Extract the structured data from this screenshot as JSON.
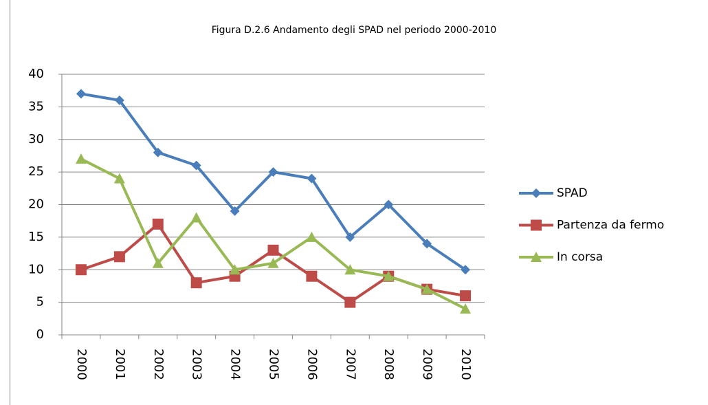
{
  "chart_data": {
    "type": "line",
    "title": "Figura D.2.6 Andamento degli SPAD nel periodo 2000-2010",
    "categories": [
      "2000",
      "2001",
      "2002",
      "2003",
      "2004",
      "2005",
      "2006",
      "2007",
      "2008",
      "2009",
      "2010"
    ],
    "series": [
      {
        "name": "SPAD",
        "color": "#4a7ebb",
        "marker": "diamond",
        "values": [
          37,
          36,
          28,
          26,
          19,
          25,
          24,
          15,
          20,
          14,
          10
        ]
      },
      {
        "name": "Partenza da fermo",
        "color": "#be4b48",
        "marker": "square",
        "values": [
          10,
          12,
          17,
          8,
          9,
          13,
          9,
          5,
          9,
          7,
          6
        ]
      },
      {
        "name": "In corsa",
        "color": "#98b954",
        "marker": "triangle",
        "values": [
          27,
          24,
          11,
          18,
          10,
          11,
          15,
          10,
          9,
          7,
          4
        ]
      }
    ],
    "ylim": [
      0,
      40
    ],
    "yticks": [
      0,
      5,
      10,
      15,
      20,
      25,
      30,
      35,
      40
    ],
    "grid": true,
    "legend": "right"
  }
}
